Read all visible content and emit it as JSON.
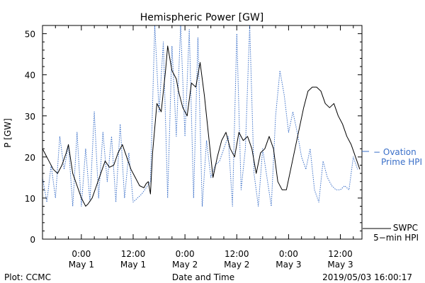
{
  "chart_data": {
    "type": "line",
    "title": "Hemispheric Power [GW]",
    "ylabel": "P [GW]",
    "xlabel": "Date and Time",
    "ylim": [
      0,
      52
    ],
    "xlim": [
      "2019-04-30 15:00",
      "2019-05-03 17:00"
    ],
    "yticks": [
      0,
      10,
      20,
      30,
      40,
      50
    ],
    "xticks": [
      {
        "x": "2019-05-01 00:00",
        "time": "0:00",
        "date": "May 1"
      },
      {
        "x": "2019-05-01 12:00",
        "time": "12:00",
        "date": "May 1"
      },
      {
        "x": "2019-05-02 00:00",
        "time": "0:00",
        "date": "May 2"
      },
      {
        "x": "2019-05-02 12:00",
        "time": "12:00",
        "date": "May 2"
      },
      {
        "x": "2019-05-03 00:00",
        "time": "0:00",
        "date": "May 3"
      },
      {
        "x": "2019-05-03 12:00",
        "time": "12:00",
        "date": "May 3"
      }
    ],
    "grid": false,
    "legend_placement": "right",
    "series": [
      {
        "name": "SWPC 5-min HPI",
        "legend": [
          "SWPC",
          "5−min HPI"
        ],
        "color": "#000000",
        "style": "solid",
        "x": [
          "2019-04-30 15:00",
          "2019-04-30 15:30",
          "2019-04-30 16:30",
          "2019-04-30 17:30",
          "2019-04-30 18:30",
          "2019-04-30 19:30",
          "2019-04-30 20:30",
          "2019-04-30 21:00",
          "2019-04-30 22:00",
          "2019-04-30 23:00",
          "2019-05-01 00:00",
          "2019-05-01 01:00",
          "2019-05-01 01:30",
          "2019-05-01 02:30",
          "2019-05-01 03:30",
          "2019-05-01 04:30",
          "2019-05-01 05:30",
          "2019-05-01 06:30",
          "2019-05-01 07:30",
          "2019-05-01 08:30",
          "2019-05-01 09:30",
          "2019-05-01 10:30",
          "2019-05-01 11:30",
          "2019-05-01 12:30",
          "2019-05-01 13:30",
          "2019-05-01 14:30",
          "2019-05-01 15:00",
          "2019-05-01 15:30",
          "2019-05-01 16:00",
          "2019-05-01 16:30",
          "2019-05-01 17:30",
          "2019-05-01 18:30",
          "2019-05-01 19:30",
          "2019-05-01 20:00",
          "2019-05-01 21:00",
          "2019-05-01 22:00",
          "2019-05-01 22:30",
          "2019-05-01 23:30",
          "2019-05-02 00:30",
          "2019-05-02 01:30",
          "2019-05-02 02:30",
          "2019-05-02 03:30",
          "2019-05-02 04:30",
          "2019-05-02 05:30",
          "2019-05-02 06:30",
          "2019-05-02 07:30",
          "2019-05-02 08:30",
          "2019-05-02 09:30",
          "2019-05-02 10:30",
          "2019-05-02 11:30",
          "2019-05-02 12:30",
          "2019-05-02 13:30",
          "2019-05-02 14:30",
          "2019-05-02 15:30",
          "2019-05-02 16:30",
          "2019-05-02 17:30",
          "2019-05-02 18:30",
          "2019-05-02 19:30",
          "2019-05-02 20:30",
          "2019-05-02 21:30",
          "2019-05-02 22:30",
          "2019-05-02 23:30",
          "2019-05-03 00:30",
          "2019-05-03 01:30",
          "2019-05-03 02:30",
          "2019-05-03 03:30",
          "2019-05-03 04:30",
          "2019-05-03 05:30",
          "2019-05-03 06:30",
          "2019-05-03 07:30",
          "2019-05-03 08:30",
          "2019-05-03 09:30",
          "2019-05-03 10:30",
          "2019-05-03 11:30",
          "2019-05-03 12:30",
          "2019-05-03 13:30",
          "2019-05-03 14:30",
          "2019-05-03 15:30",
          "2019-05-03 16:30"
        ],
        "values": [
          22,
          21,
          19,
          17,
          16,
          18,
          21,
          23,
          16,
          13,
          10,
          8,
          8.5,
          10,
          13,
          16,
          19,
          17.5,
          18,
          21,
          23,
          20,
          17,
          15,
          13,
          12.5,
          13.5,
          14,
          11,
          21,
          33,
          31,
          41,
          47,
          41,
          39,
          36,
          32,
          30,
          38,
          37,
          43,
          35,
          25,
          15,
          20,
          24,
          26,
          22,
          20,
          26,
          24,
          25,
          22,
          16,
          21,
          22,
          25,
          22,
          14,
          12,
          12,
          17,
          22,
          27,
          32,
          36,
          37,
          37,
          36,
          33,
          32,
          33,
          30,
          28,
          25,
          23,
          20,
          17
        ]
      },
      {
        "name": "Ovation Prime HPI",
        "legend": [
          "− Ovation",
          "Prime HPI"
        ],
        "color": "#3a6fc8",
        "style": "dotted",
        "x": [
          "2019-04-30 15:00",
          "2019-04-30 16:00",
          "2019-04-30 17:00",
          "2019-04-30 18:00",
          "2019-04-30 19:00",
          "2019-04-30 20:00",
          "2019-04-30 21:00",
          "2019-04-30 22:00",
          "2019-04-30 23:00",
          "2019-05-01 00:00",
          "2019-05-01 01:00",
          "2019-05-01 02:00",
          "2019-05-01 03:00",
          "2019-05-01 04:00",
          "2019-05-01 05:00",
          "2019-05-01 06:00",
          "2019-05-01 07:00",
          "2019-05-01 08:00",
          "2019-05-01 09:00",
          "2019-05-01 10:00",
          "2019-05-01 11:00",
          "2019-05-01 12:00",
          "2019-05-01 14:00",
          "2019-05-01 16:00",
          "2019-05-01 17:00",
          "2019-05-01 18:00",
          "2019-05-01 19:00",
          "2019-05-01 20:00",
          "2019-05-01 21:00",
          "2019-05-01 22:00",
          "2019-05-01 23:00",
          "2019-05-02 00:00",
          "2019-05-02 01:00",
          "2019-05-02 02:00",
          "2019-05-02 03:00",
          "2019-05-02 04:00",
          "2019-05-02 05:00",
          "2019-05-02 06:00",
          "2019-05-02 07:00",
          "2019-05-02 08:00",
          "2019-05-02 09:00",
          "2019-05-02 10:00",
          "2019-05-02 11:00",
          "2019-05-02 12:00",
          "2019-05-02 13:00",
          "2019-05-02 14:00",
          "2019-05-02 15:00",
          "2019-05-02 16:00",
          "2019-05-02 17:00",
          "2019-05-02 18:00",
          "2019-05-02 19:00",
          "2019-05-02 20:00",
          "2019-05-02 21:00",
          "2019-05-02 22:00",
          "2019-05-02 23:00",
          "2019-05-03 00:00",
          "2019-05-03 01:00",
          "2019-05-03 02:00",
          "2019-05-03 03:00",
          "2019-05-03 04:00",
          "2019-05-03 05:00",
          "2019-05-03 06:00",
          "2019-05-03 07:00",
          "2019-05-03 08:00",
          "2019-05-03 09:00",
          "2019-05-03 10:00",
          "2019-05-03 11:00",
          "2019-05-03 12:00",
          "2019-05-03 13:00",
          "2019-05-03 14:00",
          "2019-05-03 15:00",
          "2019-05-03 16:00"
        ],
        "values": [
          15,
          9,
          18,
          10,
          25,
          17,
          23,
          8,
          26,
          8,
          22,
          9,
          31,
          10,
          26,
          14,
          25,
          9,
          28,
          10,
          21,
          9,
          11,
          14,
          52,
          31,
          48,
          10,
          47,
          25,
          52,
          25,
          51,
          10,
          49,
          8,
          24,
          15,
          18,
          19,
          22,
          25,
          8,
          50,
          12,
          22,
          52,
          16,
          8,
          22,
          15,
          8,
          30,
          41,
          35,
          26,
          31,
          26,
          20,
          17,
          22,
          12,
          9,
          19,
          15,
          13,
          12,
          12,
          13,
          12,
          20,
          17
        ]
      }
    ]
  },
  "footer": {
    "left": "Plot: CCMC",
    "center": "Date and Time",
    "right": "2019/05/03 16:00:17"
  }
}
